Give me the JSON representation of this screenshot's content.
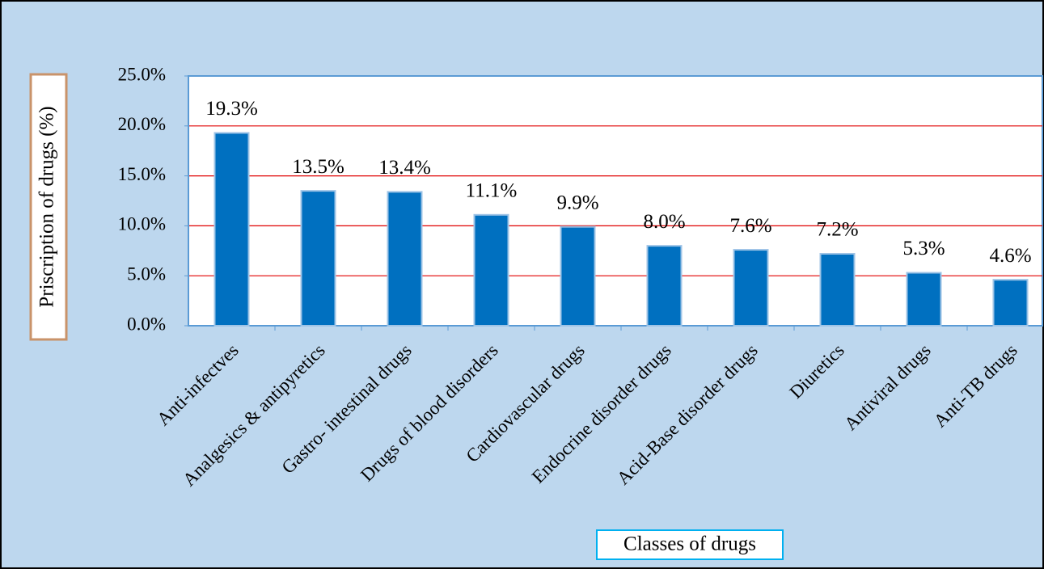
{
  "chart_data": {
    "type": "bar",
    "x_label": "Classes of drugs",
    "y_label": "Priscription of drugs (%)",
    "categories": [
      "Anti-infectves",
      "Analgesics & antipyretics",
      "Gastro- intestinal drugs",
      "Drugs of blood disorders",
      "Cardiovascular drugs",
      "Endocrine disorder drugs",
      "Acid-Base disorder drugs",
      "Diuretics",
      "Antiviral drugs",
      "Anti-TB drugs"
    ],
    "values": [
      19.3,
      13.5,
      13.4,
      11.1,
      9.9,
      8.0,
      7.6,
      7.2,
      5.3,
      4.6
    ],
    "value_labels": [
      "19.3%",
      "13.5%",
      "13.4%",
      "11.1%",
      "9.9%",
      "8.0%",
      "7.6%",
      "7.2%",
      "5.3%",
      "4.6%"
    ],
    "color": "#0070c0",
    "grid_color": "#e00000",
    "grid": true,
    "ylim": [
      0,
      25
    ],
    "yticks": [
      {
        "value": 0,
        "label": "0.0%"
      },
      {
        "value": 5,
        "label": "5.0%"
      },
      {
        "value": 10,
        "label": "10.0%"
      },
      {
        "value": 15,
        "label": "15.0%"
      },
      {
        "value": 20,
        "label": "20.0%"
      },
      {
        "value": 25,
        "label": "25.0%"
      }
    ]
  }
}
